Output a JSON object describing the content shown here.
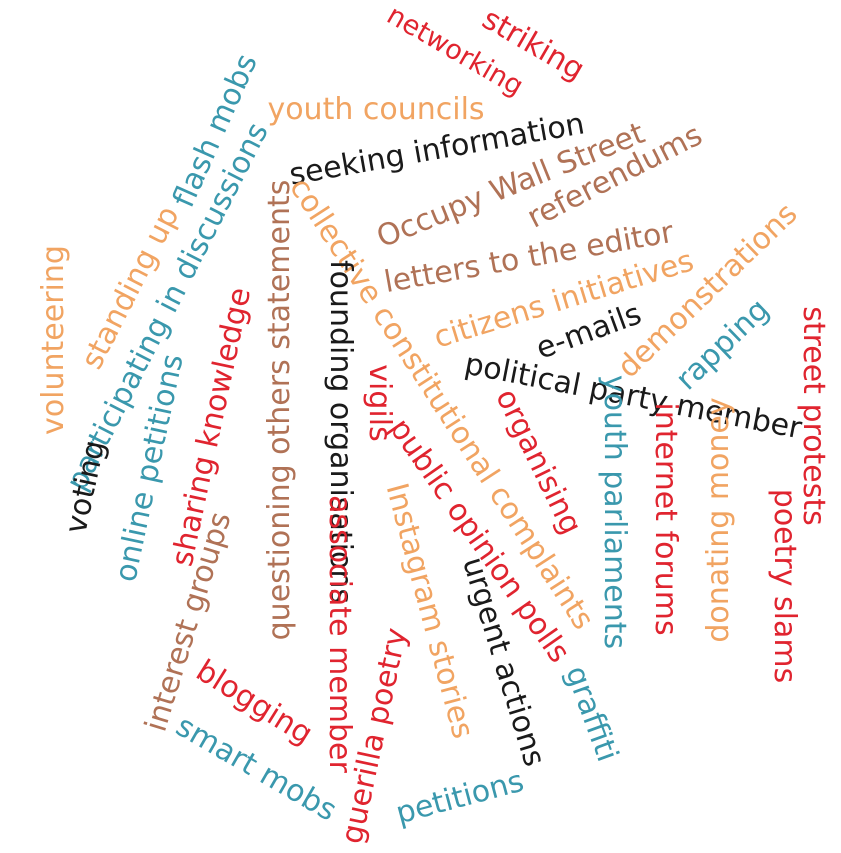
{
  "palette": {
    "red": "#e0242f",
    "orange": "#f1a462",
    "brown": "#b07256",
    "teal": "#3a98ad",
    "black": "#1a1a1a"
  },
  "words": {
    "striking": {
      "text": "striking",
      "color": "red"
    },
    "networking": {
      "text": "networking",
      "color": "red"
    },
    "youth_councils": {
      "text": "youth councils",
      "color": "orange"
    },
    "flash_mobs": {
      "text": "flash mobs",
      "color": "teal"
    },
    "seeking_information": {
      "text": "seeking information",
      "color": "black"
    },
    "occupy_wall_street": {
      "text": "Occupy Wall Street",
      "color": "brown"
    },
    "referendums": {
      "text": "referendums",
      "color": "brown"
    },
    "letters_to_the_editor": {
      "text": "letters to the editor",
      "color": "brown"
    },
    "demonstrations": {
      "text": "demonstrations",
      "color": "orange"
    },
    "citizens_initiatives": {
      "text": "citizens initiatives",
      "color": "orange"
    },
    "e_mails": {
      "text": "e-mails",
      "color": "black"
    },
    "rapping": {
      "text": "rapping",
      "color": "teal"
    },
    "street_protests": {
      "text": "street protests",
      "color": "red"
    },
    "political_party_member": {
      "text": "political party member",
      "color": "black"
    },
    "collective_constitutional_complaints": {
      "text": "collective constitutional complaints",
      "color": "orange"
    },
    "participating_in_discussions": {
      "text": "participating in discussions",
      "color": "teal"
    },
    "standing_up": {
      "text": "standing up",
      "color": "orange"
    },
    "volunteering": {
      "text": "volunteering",
      "color": "orange"
    },
    "questioning_others_statements": {
      "text": "questioning others statements",
      "color": "brown"
    },
    "founding_organisations": {
      "text": "founding organisations",
      "color": "black"
    },
    "vigils": {
      "text": "vigils",
      "color": "red"
    },
    "organising": {
      "text": "organising",
      "color": "red"
    },
    "youth_parliaments": {
      "text": "youth parliaments",
      "color": "teal"
    },
    "internet_forums": {
      "text": "internet forums",
      "color": "red"
    },
    "donating_money": {
      "text": "donating money",
      "color": "orange"
    },
    "poetry_slams": {
      "text": "poetry slams",
      "color": "red"
    },
    "sharing_knowledge": {
      "text": "sharing knowledge",
      "color": "red"
    },
    "online_petitions": {
      "text": "online petitions",
      "color": "teal"
    },
    "voting": {
      "text": "voting",
      "color": "black"
    },
    "public_opinion_polls": {
      "text": "public opinion polls",
      "color": "red"
    },
    "instagram_stories": {
      "text": "Instagram stories",
      "color": "orange"
    },
    "associate_member": {
      "text": "associate member",
      "color": "red"
    },
    "interest_groups": {
      "text": "interest groups",
      "color": "brown"
    },
    "urgent_actions": {
      "text": "urgent actions",
      "color": "black"
    },
    "graffiti": {
      "text": "graffiti",
      "color": "teal"
    },
    "blogging": {
      "text": "blogging",
      "color": "red"
    },
    "smart_mobs": {
      "text": "smart mobs",
      "color": "teal"
    },
    "guerilla_poetry": {
      "text": "guerilla poetry",
      "color": "red"
    },
    "petitions": {
      "text": "petitions",
      "color": "teal"
    }
  }
}
